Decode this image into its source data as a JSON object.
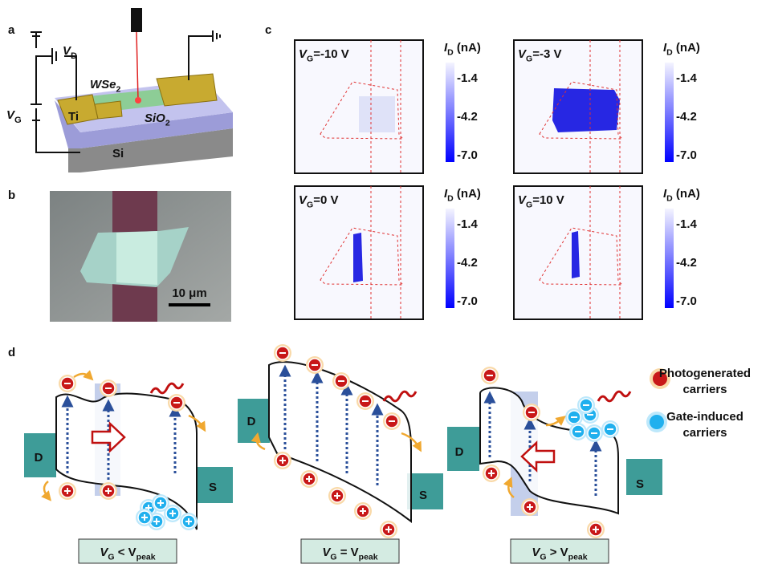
{
  "panel_labels": [
    "a",
    "b",
    "c",
    "d"
  ],
  "panel_a": {
    "vd": {
      "main": "V",
      "sub": "D"
    },
    "vg": {
      "main": "V",
      "sub": "G"
    },
    "material": {
      "main": "WSe",
      "sub": "2"
    },
    "electrode": "Ti",
    "oxide": {
      "main": "SiO",
      "sub": "2"
    },
    "substrate": "Si"
  },
  "panel_b": {
    "scale_bar": "10 μm"
  },
  "panel_c": {
    "colorbar": {
      "label": {
        "main": "I",
        "sub": "D",
        "rest": " (nA)"
      },
      "ticks": [
        "-1.4",
        "-4.2",
        "-7.0"
      ]
    },
    "maps": [
      {
        "gate": {
          "main": "V",
          "sub": "G",
          "rest": "=-10 V"
        }
      },
      {
        "gate": {
          "main": "V",
          "sub": "G",
          "rest": "=-3 V"
        }
      },
      {
        "gate": {
          "main": "V",
          "sub": "G",
          "rest": "=0 V"
        }
      },
      {
        "gate": {
          "main": "V",
          "sub": "G",
          "rest": "=10 V"
        }
      }
    ]
  },
  "panel_d": {
    "drain": "D",
    "source": "S",
    "conditions": [
      {
        "main": "V",
        "sub": "G",
        "rest": " < V",
        "sub2": "peak"
      },
      {
        "main": "V",
        "sub": "G",
        "rest": " = V",
        "sub2": "peak"
      },
      {
        "main": "V",
        "sub": "G",
        "rest": " > V",
        "sub2": "peak"
      }
    ],
    "legend": [
      {
        "lines": [
          "Photogenerated",
          "carriers"
        ]
      },
      {
        "lines": [
          "Gate-induced",
          "carriers"
        ]
      }
    ]
  }
}
